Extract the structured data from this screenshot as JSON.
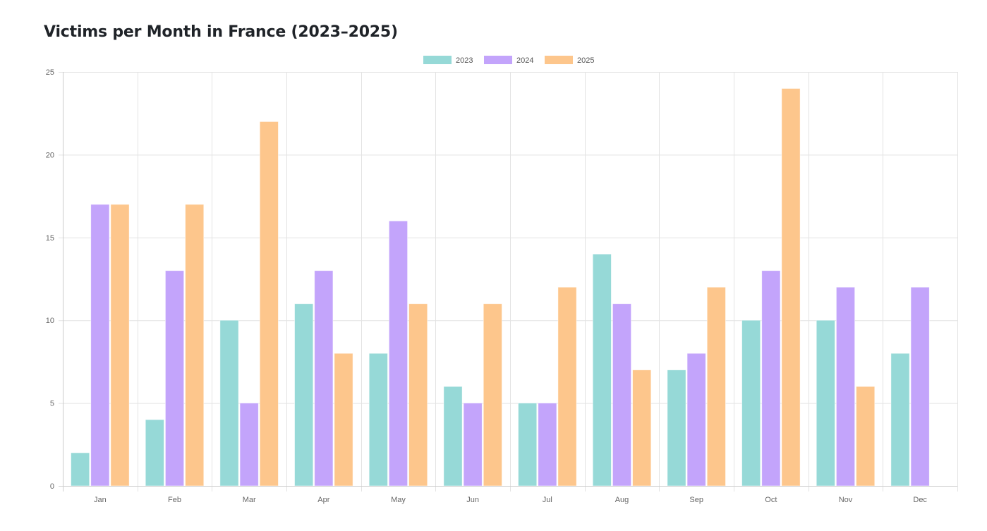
{
  "chart_data": {
    "type": "bar",
    "title": "Victims per Month in France (2023–2025)",
    "xlabel": "",
    "ylabel": "",
    "categories": [
      "Jan",
      "Feb",
      "Mar",
      "Apr",
      "May",
      "Jun",
      "Jul",
      "Aug",
      "Sep",
      "Oct",
      "Nov",
      "Dec"
    ],
    "series": [
      {
        "name": "2023",
        "color": "#96d9d7",
        "values": [
          2,
          4,
          10,
          11,
          8,
          6,
          5,
          14,
          7,
          10,
          10,
          8
        ]
      },
      {
        "name": "2024",
        "color": "#c3a4fb",
        "values": [
          17,
          13,
          5,
          13,
          16,
          5,
          5,
          11,
          8,
          13,
          12,
          12
        ]
      },
      {
        "name": "2025",
        "color": "#fdc68c",
        "values": [
          17,
          17,
          22,
          8,
          11,
          11,
          12,
          7,
          12,
          24,
          6,
          null
        ]
      }
    ],
    "ylim": [
      0,
      25
    ],
    "yticks": [
      0,
      5,
      10,
      15,
      20,
      25
    ],
    "grid": true,
    "legend_position": "top-center"
  }
}
